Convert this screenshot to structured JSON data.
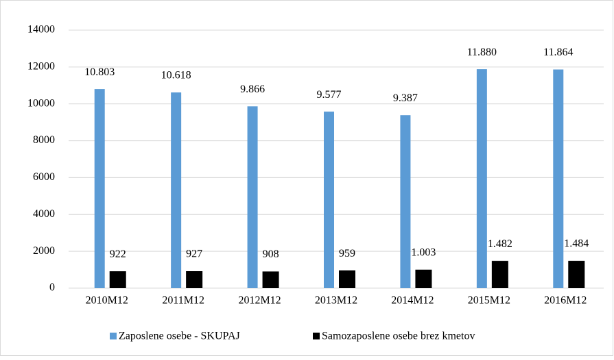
{
  "chart_data": {
    "type": "bar",
    "categories": [
      "2010M12",
      "2011M12",
      "2012M12",
      "2013M12",
      "2014M12",
      "2015M12",
      "2016M12"
    ],
    "series": [
      {
        "name": "Zaposlene osebe - SKUPAJ",
        "color": "#5b9bd5",
        "values": [
          10803,
          10618,
          9866,
          9577,
          9387,
          11880,
          11864
        ],
        "value_labels": [
          "10.803",
          "10.618",
          "9.866",
          "9.577",
          "9.387",
          "11.880",
          "11.864"
        ]
      },
      {
        "name": "Samozaposlene osebe brez kmetov",
        "color": "#000000",
        "values": [
          922,
          927,
          908,
          959,
          1003,
          1482,
          1484
        ],
        "value_labels": [
          "922",
          "927",
          "908",
          "959",
          "1.003",
          "1.482",
          "1.484"
        ]
      }
    ],
    "ylim": [
      0,
      14000
    ],
    "yticks": [
      0,
      2000,
      4000,
      6000,
      8000,
      10000,
      12000,
      14000
    ],
    "grid": true,
    "legend": "bottom"
  }
}
